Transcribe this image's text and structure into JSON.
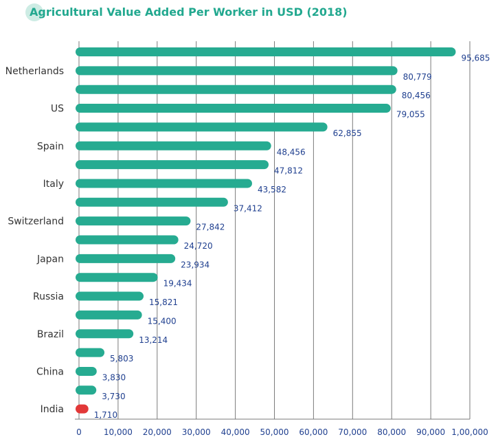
{
  "chart_data": {
    "type": "bar",
    "orientation": "horizontal",
    "title": "Agricultural Value Added Per Worker in USD (2018)",
    "xlabel": "",
    "ylabel": "",
    "categories": [
      "",
      "Netherlands",
      "",
      "US",
      "",
      "Spain",
      "",
      "Italy",
      "",
      "Switzerland",
      "",
      "Japan",
      "",
      "Russia",
      "",
      "Brazil",
      "",
      "China",
      "",
      "India"
    ],
    "values": [
      95685,
      80779,
      80456,
      79055,
      62855,
      48456,
      47812,
      43582,
      37412,
      27842,
      24720,
      23934,
      19434,
      15821,
      15400,
      13214,
      5803,
      3830,
      3730,
      1710
    ],
    "value_labels": [
      "95,685",
      "80,779",
      "80,456",
      "79,055",
      "62,855",
      "48,456",
      "47,812",
      "43,582",
      "37,412",
      "27,842",
      "24,720",
      "23,934",
      "19,434",
      "15,821",
      "15,400",
      "13,214",
      "5,803",
      "3,830",
      "3,730",
      "1,710"
    ],
    "xlim": [
      0,
      100000
    ],
    "x_ticks": [
      0,
      10000,
      20000,
      30000,
      40000,
      50000,
      60000,
      70000,
      80000,
      90000,
      100000
    ],
    "x_tick_labels": [
      "0",
      "10,000",
      "20,000",
      "30,000",
      "40,000",
      "50,000",
      "60,000",
      "70,000",
      "80,000",
      "90,000",
      "1,00,000"
    ],
    "grid": "vertical",
    "legend": "none",
    "colors": {
      "bar": "#26ab91",
      "highlight": "#e23838",
      "highlight_category": "India",
      "title": "#22a88f",
      "value_text": "#1f3f8f",
      "category_text": "#333333",
      "grid": "#7a7a7a"
    }
  }
}
